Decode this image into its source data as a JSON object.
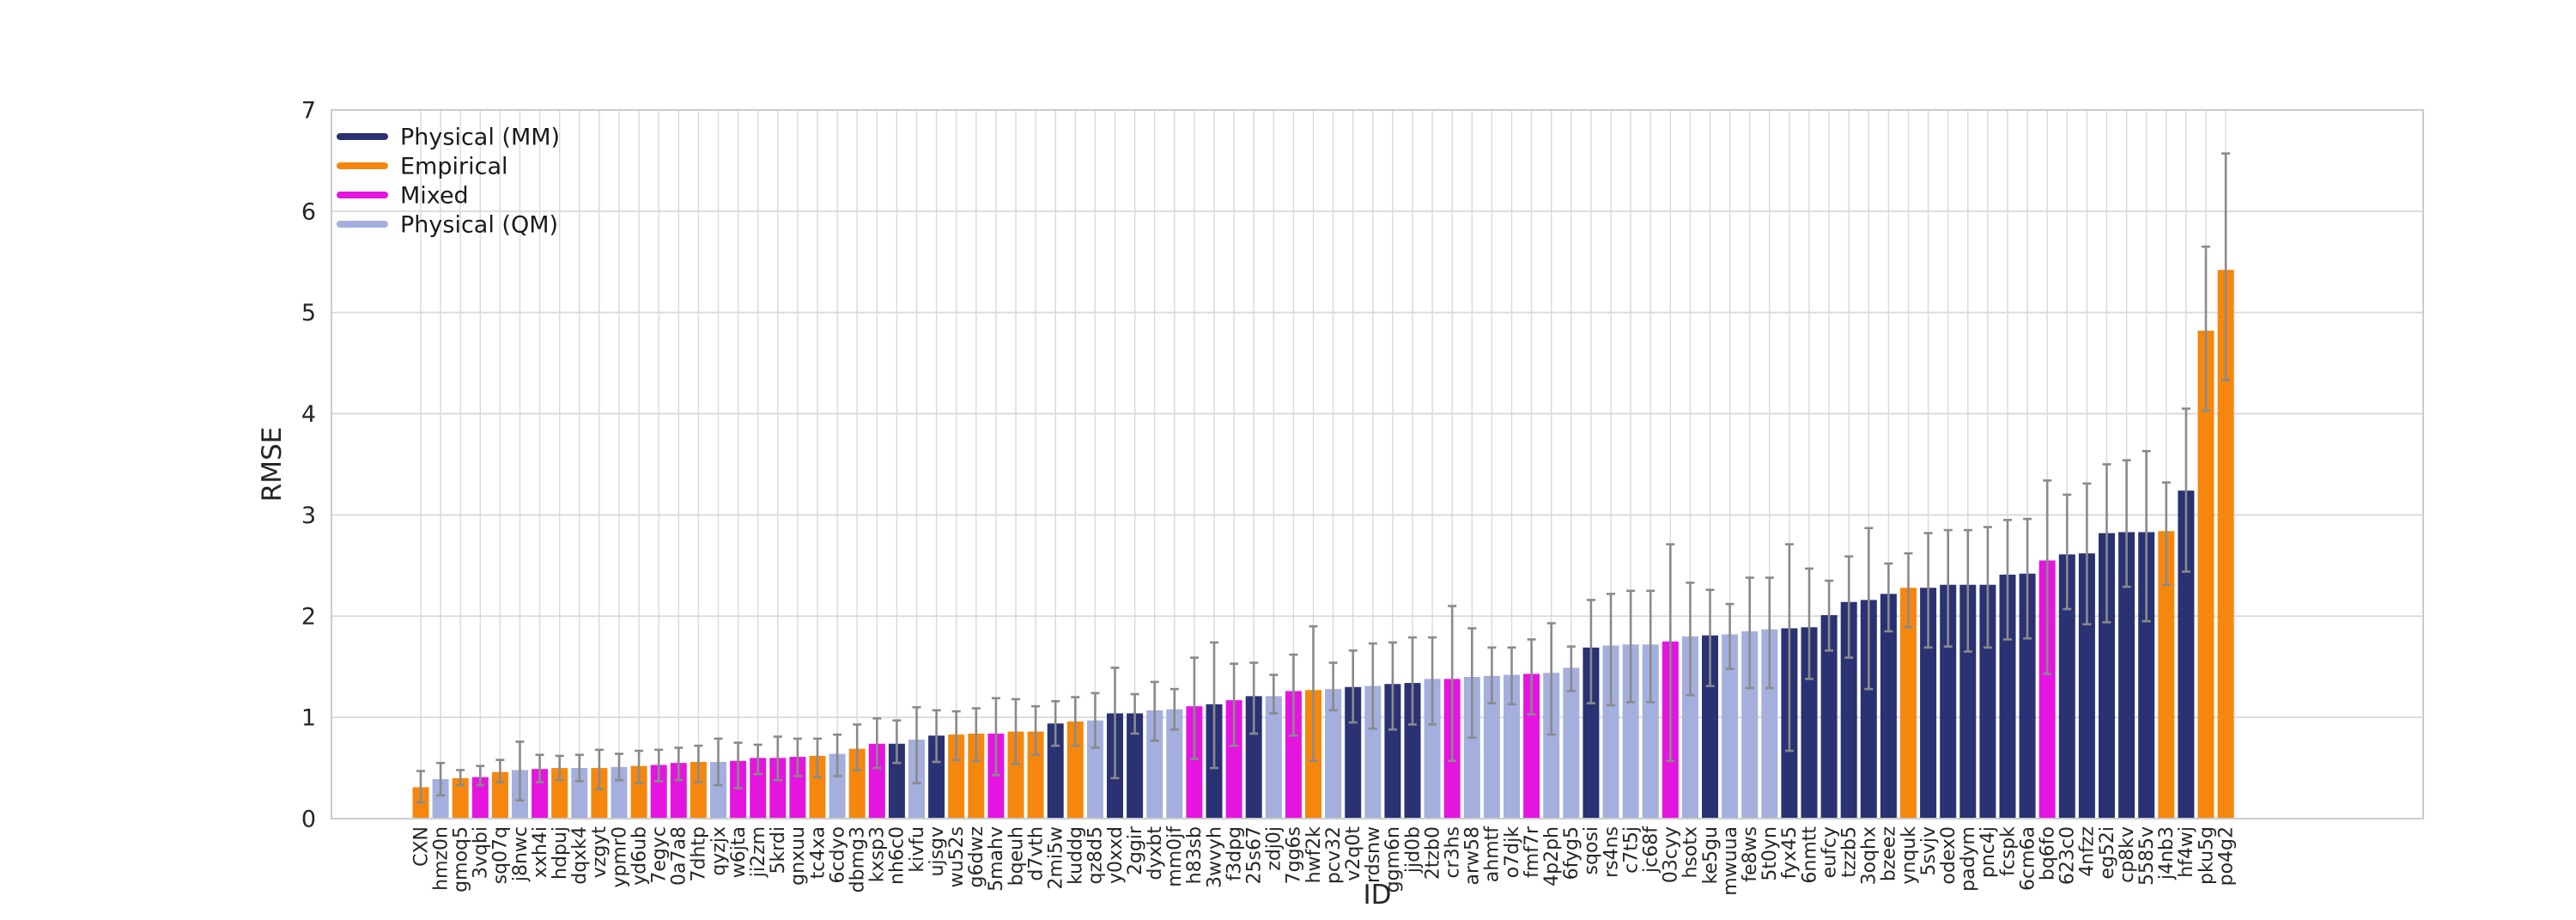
{
  "chart_data": {
    "type": "bar",
    "title": "",
    "xlabel": "ID",
    "ylabel": "RMSE",
    "ylim": [
      0,
      7
    ],
    "yticks": [
      0,
      1,
      2,
      3,
      4,
      5,
      6,
      7
    ],
    "grid": "both",
    "legend_position": "upper-left-inside",
    "legend": [
      {
        "label": "Physical (MM)",
        "key": "MM",
        "color": "#2a3274"
      },
      {
        "label": "Empirical",
        "key": "E",
        "color": "#f5870f"
      },
      {
        "label": "Mixed",
        "key": "M",
        "color": "#e415df"
      },
      {
        "label": "Physical (QM)",
        "key": "QM",
        "color": "#a4afdd"
      }
    ],
    "error_bar_color": "#8a8a8a",
    "grid_color": "#d9d9d9",
    "spine_color": "#cccccc",
    "text_color": "#262626",
    "categories": [
      "CXN",
      "hmz0n",
      "gmoq5",
      "3vqbi",
      "sq07q",
      "j8nwc",
      "xxh4i",
      "hdpuj",
      "dqxk4",
      "vzgyt",
      "ypmr0",
      "yd6ub",
      "7egyc",
      "0a7a8",
      "7dhtp",
      "qyzjx",
      "w6jta",
      "ji2zm",
      "5krdi",
      "gnxuu",
      "tc4xa",
      "6cdyo",
      "dbmg3",
      "kxsp3",
      "nh6c0",
      "kivfu",
      "ujsgv",
      "wu52s",
      "g6dwz",
      "5mahv",
      "bqeuh",
      "d7vth",
      "2mi5w",
      "kuddg",
      "qz8d5",
      "y0xxd",
      "2ggir",
      "dyxbt",
      "mm0jf",
      "h83sb",
      "3wvyh",
      "f3dpg",
      "25s67",
      "zdj0j",
      "7gg6s",
      "hwf2k",
      "pcv32",
      "v2q0t",
      "rdsnw",
      "ggm6n",
      "jjd0b",
      "2tzb0",
      "cr3hs",
      "arw58",
      "ahmtf",
      "o7djk",
      "fmf7r",
      "4p2ph",
      "6fyg5",
      "sqosi",
      "rs4ns",
      "c7t5j",
      "jc68f",
      "03cyy",
      "hsotx",
      "ke5gu",
      "mwuua",
      "fe8ws",
      "5t0yn",
      "fyx45",
      "6nmtt",
      "eufcy",
      "tzzb5",
      "3oqhx",
      "bzeez",
      "ynquk",
      "5svjv",
      "odex0",
      "padym",
      "pnc4j",
      "fcspk",
      "6cm6a",
      "bq6fo",
      "623c0",
      "4nfzz",
      "eg52i",
      "cp8kv",
      "5585v",
      "j4nb3",
      "hf4wj",
      "pku5g",
      "po4g2"
    ],
    "groups": [
      "E",
      "QM",
      "E",
      "M",
      "E",
      "QM",
      "M",
      "E",
      "QM",
      "E",
      "QM",
      "E",
      "M",
      "M",
      "E",
      "QM",
      "M",
      "M",
      "M",
      "M",
      "E",
      "QM",
      "E",
      "M",
      "MM",
      "QM",
      "MM",
      "E",
      "E",
      "M",
      "E",
      "E",
      "MM",
      "E",
      "QM",
      "MM",
      "MM",
      "QM",
      "QM",
      "M",
      "MM",
      "M",
      "MM",
      "QM",
      "M",
      "E",
      "QM",
      "MM",
      "QM",
      "MM",
      "MM",
      "QM",
      "M",
      "QM",
      "QM",
      "QM",
      "M",
      "QM",
      "QM",
      "MM",
      "QM",
      "QM",
      "QM",
      "M",
      "QM",
      "MM",
      "QM",
      "QM",
      "QM",
      "MM",
      "MM",
      "MM",
      "MM",
      "MM",
      "MM",
      "E",
      "MM",
      "MM",
      "MM",
      "MM",
      "MM",
      "MM",
      "M",
      "MM",
      "MM",
      "MM",
      "MM",
      "MM",
      "E",
      "MM",
      "E",
      "E"
    ],
    "values": [
      0.31,
      0.39,
      0.4,
      0.41,
      0.46,
      0.48,
      0.49,
      0.5,
      0.5,
      0.5,
      0.51,
      0.52,
      0.53,
      0.55,
      0.56,
      0.56,
      0.57,
      0.6,
      0.6,
      0.61,
      0.62,
      0.64,
      0.69,
      0.74,
      0.74,
      0.78,
      0.82,
      0.83,
      0.84,
      0.84,
      0.86,
      0.86,
      0.94,
      0.96,
      0.97,
      1.04,
      1.04,
      1.07,
      1.08,
      1.11,
      1.13,
      1.17,
      1.21,
      1.21,
      1.26,
      1.27,
      1.28,
      1.3,
      1.31,
      1.33,
      1.34,
      1.38,
      1.38,
      1.4,
      1.41,
      1.42,
      1.43,
      1.44,
      1.49,
      1.69,
      1.71,
      1.72,
      1.72,
      1.75,
      1.8,
      1.81,
      1.82,
      1.85,
      1.87,
      1.88,
      1.89,
      2.01,
      2.14,
      2.16,
      2.22,
      2.28,
      2.28,
      2.31,
      2.31,
      2.31,
      2.41,
      2.42,
      2.55,
      2.61,
      2.62,
      2.82,
      2.83,
      2.83,
      2.84,
      3.24,
      4.82,
      5.42
    ],
    "err_lo": [
      0.16,
      0.23,
      0.33,
      0.33,
      0.36,
      0.18,
      0.36,
      0.38,
      0.37,
      0.29,
      0.38,
      0.35,
      0.37,
      0.38,
      0.36,
      0.33,
      0.3,
      0.44,
      0.38,
      0.42,
      0.41,
      0.42,
      0.48,
      0.5,
      0.55,
      0.35,
      0.56,
      0.58,
      0.57,
      0.43,
      0.54,
      0.63,
      0.72,
      0.72,
      0.7,
      0.4,
      0.84,
      0.77,
      0.88,
      0.59,
      0.5,
      0.72,
      0.84,
      1.04,
      0.82,
      0.57,
      1.07,
      0.95,
      0.89,
      0.88,
      0.93,
      0.93,
      0.57,
      0.8,
      1.14,
      1.13,
      1.03,
      0.83,
      1.26,
      1.14,
      1.12,
      1.15,
      1.15,
      0.57,
      1.22,
      1.31,
      1.48,
      1.29,
      1.29,
      0.67,
      1.38,
      1.66,
      1.59,
      1.28,
      1.85,
      1.89,
      1.69,
      1.7,
      1.65,
      1.69,
      1.77,
      1.78,
      1.43,
      2.07,
      1.92,
      1.94,
      2.29,
      1.95,
      2.31,
      2.44,
      4.03,
      4.33
    ],
    "err_hi": [
      0.47,
      0.55,
      0.48,
      0.52,
      0.58,
      0.76,
      0.63,
      0.62,
      0.63,
      0.68,
      0.64,
      0.67,
      0.68,
      0.7,
      0.72,
      0.79,
      0.75,
      0.73,
      0.81,
      0.79,
      0.79,
      0.83,
      0.93,
      0.99,
      0.97,
      1.1,
      1.07,
      1.06,
      1.09,
      1.19,
      1.18,
      1.11,
      1.16,
      1.2,
      1.24,
      1.49,
      1.23,
      1.35,
      1.28,
      1.59,
      1.74,
      1.53,
      1.54,
      1.42,
      1.62,
      1.9,
      1.54,
      1.66,
      1.73,
      1.74,
      1.79,
      1.79,
      2.1,
      1.88,
      1.69,
      1.69,
      1.77,
      1.93,
      1.7,
      2.16,
      2.22,
      2.25,
      2.25,
      2.71,
      2.33,
      2.26,
      2.12,
      2.38,
      2.38,
      2.71,
      2.47,
      2.35,
      2.59,
      2.87,
      2.52,
      2.62,
      2.82,
      2.85,
      2.85,
      2.88,
      2.95,
      2.96,
      3.34,
      3.2,
      3.31,
      3.5,
      3.54,
      3.63,
      3.32,
      4.05,
      5.65,
      6.57
    ]
  }
}
